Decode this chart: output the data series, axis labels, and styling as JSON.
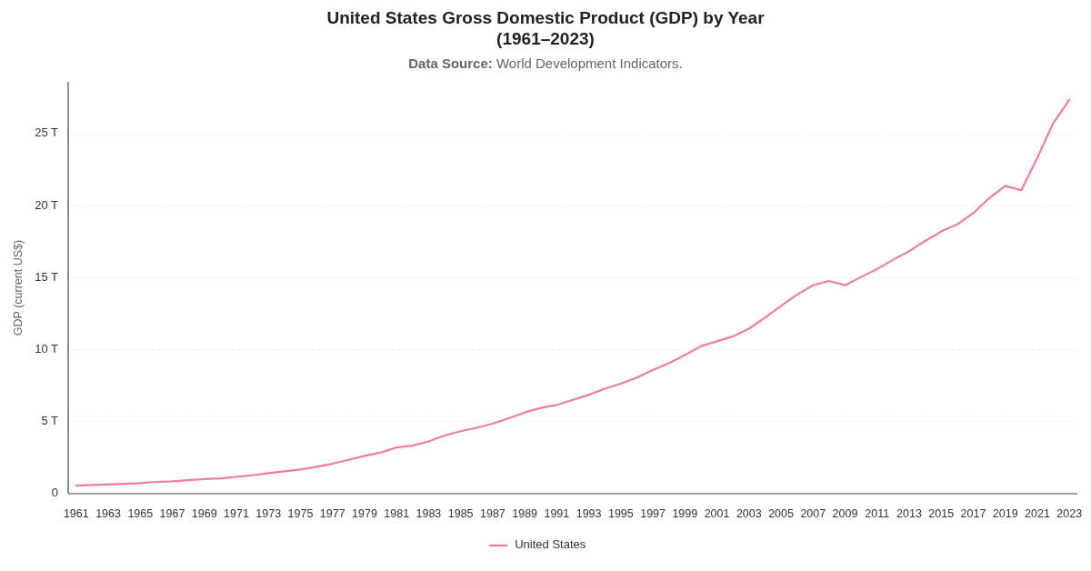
{
  "chart_data": {
    "type": "line",
    "title": "United States Gross Domestic Product (GDP) by Year\n(1961–2023)",
    "subtitle": "Data Source: World Development Indicators.",
    "ylabel": "GDP (current US$)",
    "categories": [
      "1961",
      null,
      "1963",
      null,
      "1965",
      null,
      "1967",
      null,
      "1969",
      null,
      "1971",
      null,
      "1973",
      null,
      "1975",
      null,
      "1977",
      null,
      "1979",
      null,
      "1981",
      null,
      "1983",
      null,
      "1985",
      null,
      "1987",
      null,
      "1989",
      null,
      "1991",
      null,
      "1993",
      null,
      "1995",
      null,
      "1997",
      null,
      "1999",
      null,
      "2001",
      null,
      "2003",
      null,
      "2005",
      null,
      "2007",
      null,
      "2009",
      null,
      "2011",
      null,
      "2013",
      null,
      "2015",
      null,
      "2017",
      null,
      "2019",
      null,
      "2021",
      null,
      "2023"
    ],
    "series": [
      {
        "name": "United States",
        "color": "#ef7ba6",
        "values": [
          0.56,
          0.61,
          0.64,
          0.69,
          0.74,
          0.82,
          0.86,
          0.94,
          1.02,
          1.07,
          1.17,
          1.28,
          1.43,
          1.55,
          1.68,
          1.87,
          2.08,
          2.35,
          2.63,
          2.86,
          3.21,
          3.34,
          3.63,
          4.04,
          4.34,
          4.58,
          4.86,
          5.24,
          5.64,
          5.96,
          6.16,
          6.52,
          6.86,
          7.29,
          7.64,
          8.07,
          8.58,
          9.06,
          9.63,
          10.25,
          10.58,
          10.93,
          11.46,
          12.22,
          13.04,
          13.82,
          14.47,
          14.77,
          14.48,
          15.05,
          15.6,
          16.25,
          16.84,
          17.55,
          18.21,
          18.7,
          19.48,
          20.53,
          21.38,
          21.06,
          23.32,
          25.74,
          27.36
        ]
      }
    ],
    "ylim": [
      0,
      28.6
    ],
    "yticks": [
      0,
      {
        "value": 5,
        "label": "5 T"
      },
      {
        "value": 10,
        "label": "10 T"
      },
      {
        "value": 15,
        "label": "15 T"
      },
      {
        "value": 20,
        "label": "20 T"
      },
      {
        "value": 25,
        "label": "25 T"
      }
    ],
    "grid": "y",
    "legend": "bottom",
    "marker": "none",
    "line_style": "solid"
  }
}
